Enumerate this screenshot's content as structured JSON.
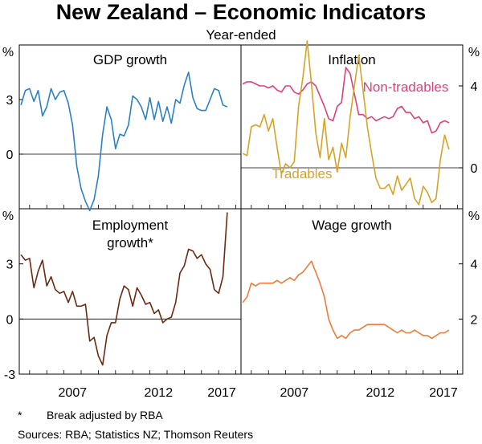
{
  "title": "New Zealand – Economic Indicators",
  "subtitle": "Year-ended",
  "footnote_mark": "*",
  "footnote": "Break adjusted by RBA",
  "sources": "Sources: RBA; Statistics NZ; Thomson Reuters",
  "colors": {
    "gdp": "#2c80c4",
    "non_tradables": "#e0407a",
    "tradables": "#d6a326",
    "employment": "#6b2a12",
    "wage": "#ef7b3c",
    "axis": "#000000",
    "gridline": "#000000"
  },
  "chart_data": [
    {
      "type": "line",
      "panel": "top-left",
      "title": "GDP growth",
      "ylabel": "%",
      "ylim": [
        -3,
        6
      ],
      "yticks": [
        0,
        3
      ],
      "xticks": [
        "2007"
      ],
      "x": [
        2004.5,
        2004.75,
        2005.0,
        2005.25,
        2005.5,
        2005.75,
        2006.0,
        2006.25,
        2006.5,
        2006.75,
        2007.0,
        2007.25,
        2007.5,
        2007.75,
        2008.0,
        2008.25,
        2008.5,
        2008.75,
        2009.0,
        2009.25,
        2009.5,
        2009.75,
        2010.0,
        2010.25,
        2010.5,
        2010.75,
        2011.0,
        2011.25,
        2011.5,
        2011.75,
        2012.0,
        2012.25,
        2012.5,
        2012.75,
        2013.0,
        2013.25,
        2013.5,
        2013.75,
        2014.0,
        2014.25,
        2014.5,
        2014.75,
        2015.0,
        2015.25,
        2015.5,
        2015.75,
        2016.0,
        2016.25,
        2016.5
      ],
      "series": [
        {
          "name": "",
          "values": [
            2.7,
            3.5,
            3.6,
            2.9,
            3.5,
            2.1,
            2.6,
            3.6,
            3.0,
            3.4,
            3.5,
            2.8,
            1.6,
            -0.7,
            -1.9,
            -2.6,
            -3.1,
            -2.5,
            -1.2,
            1.1,
            2.6,
            1.9,
            0.3,
            1.1,
            1.0,
            1.6,
            3.2,
            3.0,
            2.6,
            1.9,
            3.1,
            1.9,
            2.9,
            1.8,
            2.6,
            1.7,
            3.0,
            2.8,
            3.8,
            4.5,
            3.1,
            2.5,
            2.4,
            2.4,
            3.0,
            3.6,
            3.5,
            2.7,
            2.6
          ]
        }
      ]
    },
    {
      "type": "line",
      "panel": "top-right",
      "title": "Inflation",
      "ylabel": "%",
      "ylim": [
        -2,
        6
      ],
      "yticks": [
        0,
        4
      ],
      "xticks": [
        "2007"
      ],
      "x": [
        2004.5,
        2004.75,
        2005.0,
        2005.25,
        2005.5,
        2005.75,
        2006.0,
        2006.25,
        2006.5,
        2006.75,
        2007.0,
        2007.25,
        2007.5,
        2007.75,
        2008.0,
        2008.25,
        2008.5,
        2008.75,
        2009.0,
        2009.25,
        2009.5,
        2009.75,
        2010.0,
        2010.25,
        2010.5,
        2010.75,
        2011.0,
        2011.25,
        2011.5,
        2011.75,
        2012.0,
        2012.25,
        2012.5,
        2012.75,
        2013.0,
        2013.25,
        2013.5,
        2013.75,
        2014.0,
        2014.25,
        2014.5,
        2014.75,
        2015.0,
        2015.25,
        2015.5,
        2015.75,
        2016.0,
        2016.25,
        2016.5
      ],
      "series": [
        {
          "name": "Non-tradables",
          "values": [
            4.1,
            4.2,
            4.2,
            4.1,
            4.0,
            4.0,
            3.9,
            4.0,
            3.8,
            3.7,
            4.0,
            4.0,
            3.7,
            3.6,
            3.8,
            4.1,
            4.2,
            4.0,
            3.5,
            3.0,
            2.4,
            2.3,
            3.0,
            3.2,
            4.9,
            4.6,
            3.6,
            2.6,
            2.6,
            2.4,
            2.5,
            2.3,
            2.4,
            2.5,
            2.4,
            2.5,
            2.9,
            3.0,
            2.7,
            2.7,
            2.4,
            2.5,
            2.2,
            2.3,
            1.7,
            1.8,
            2.2,
            2.3,
            2.2
          ]
        },
        {
          "name": "Tradables",
          "values": [
            0.7,
            0.6,
            2.0,
            2.1,
            2.0,
            2.6,
            1.8,
            2.4,
            1.0,
            -0.3,
            0.2,
            0.0,
            0.3,
            3.0,
            4.4,
            6.2,
            4.1,
            1.7,
            0.5,
            2.4,
            0.4,
            1.0,
            -0.2,
            1.2,
            0.5,
            2.5,
            4.0,
            5.5,
            3.8,
            2.0,
            0.7,
            -0.5,
            -1.0,
            -1.0,
            -0.8,
            -1.3,
            -0.4,
            -1.1,
            -0.8,
            -0.5,
            -1.5,
            -1.8,
            -0.9,
            -1.2,
            -1.7,
            -1.5,
            0.4,
            1.6,
            0.9
          ]
        }
      ]
    },
    {
      "type": "line",
      "panel": "bottom-left",
      "title": "Employment growth*",
      "ylabel": "%",
      "ylim": [
        -3,
        6
      ],
      "yticks": [
        -3,
        0,
        3
      ],
      "xticks": [
        "2007",
        "2012",
        "2017"
      ],
      "x": [
        2004.5,
        2004.75,
        2005.0,
        2005.25,
        2005.5,
        2005.75,
        2006.0,
        2006.25,
        2006.5,
        2006.75,
        2007.0,
        2007.25,
        2007.5,
        2007.75,
        2008.0,
        2008.25,
        2008.5,
        2008.75,
        2009.0,
        2009.25,
        2009.5,
        2009.75,
        2010.0,
        2010.25,
        2010.5,
        2010.75,
        2011.0,
        2011.25,
        2011.5,
        2011.75,
        2012.0,
        2012.25,
        2012.5,
        2012.75,
        2013.0,
        2013.25,
        2013.5,
        2013.75,
        2014.0,
        2014.25,
        2014.5,
        2014.75,
        2015.0,
        2015.25,
        2015.5,
        2015.75,
        2016.0,
        2016.25,
        2016.5
      ],
      "series": [
        {
          "name": "",
          "values": [
            3.5,
            3.2,
            3.3,
            1.7,
            2.6,
            3.2,
            1.8,
            2.3,
            1.6,
            1.4,
            1.5,
            0.9,
            1.5,
            0.7,
            0.7,
            0.8,
            -1.2,
            -1.0,
            -2.0,
            -2.5,
            -0.9,
            -0.2,
            -0.2,
            1.1,
            1.8,
            1.6,
            0.7,
            1.7,
            1.3,
            0.8,
            0.9,
            0.3,
            0.5,
            -0.2,
            0.0,
            0.1,
            0.9,
            2.5,
            2.9,
            3.8,
            3.7,
            3.3,
            3.5,
            3.0,
            2.7,
            1.6,
            1.4,
            2.3,
            5.8
          ]
        }
      ]
    },
    {
      "type": "line",
      "panel": "bottom-right",
      "title": "Wage growth",
      "ylabel": "%",
      "ylim": [
        0,
        6
      ],
      "yticks": [
        2,
        4
      ],
      "xticks": [
        "2007",
        "2012",
        "2017"
      ],
      "x": [
        2004.5,
        2004.75,
        2005.0,
        2005.25,
        2005.5,
        2005.75,
        2006.0,
        2006.25,
        2006.5,
        2006.75,
        2007.0,
        2007.25,
        2007.5,
        2007.75,
        2008.0,
        2008.25,
        2008.5,
        2008.75,
        2009.0,
        2009.25,
        2009.5,
        2009.75,
        2010.0,
        2010.25,
        2010.5,
        2010.75,
        2011.0,
        2011.25,
        2011.5,
        2011.75,
        2012.0,
        2012.25,
        2012.5,
        2012.75,
        2013.0,
        2013.25,
        2013.5,
        2013.75,
        2014.0,
        2014.25,
        2014.5,
        2014.75,
        2015.0,
        2015.25,
        2015.5,
        2015.75,
        2016.0,
        2016.25,
        2016.5
      ],
      "series": [
        {
          "name": "",
          "values": [
            2.6,
            2.8,
            3.3,
            3.2,
            3.3,
            3.3,
            3.3,
            3.3,
            3.4,
            3.3,
            3.4,
            3.5,
            3.4,
            3.6,
            3.7,
            3.9,
            4.1,
            3.7,
            3.3,
            2.8,
            2.0,
            1.6,
            1.3,
            1.4,
            1.3,
            1.5,
            1.6,
            1.6,
            1.7,
            1.8,
            1.8,
            1.8,
            1.8,
            1.8,
            1.7,
            1.6,
            1.5,
            1.6,
            1.5,
            1.5,
            1.6,
            1.5,
            1.4,
            1.4,
            1.3,
            1.4,
            1.5,
            1.5,
            1.6
          ]
        }
      ]
    }
  ]
}
